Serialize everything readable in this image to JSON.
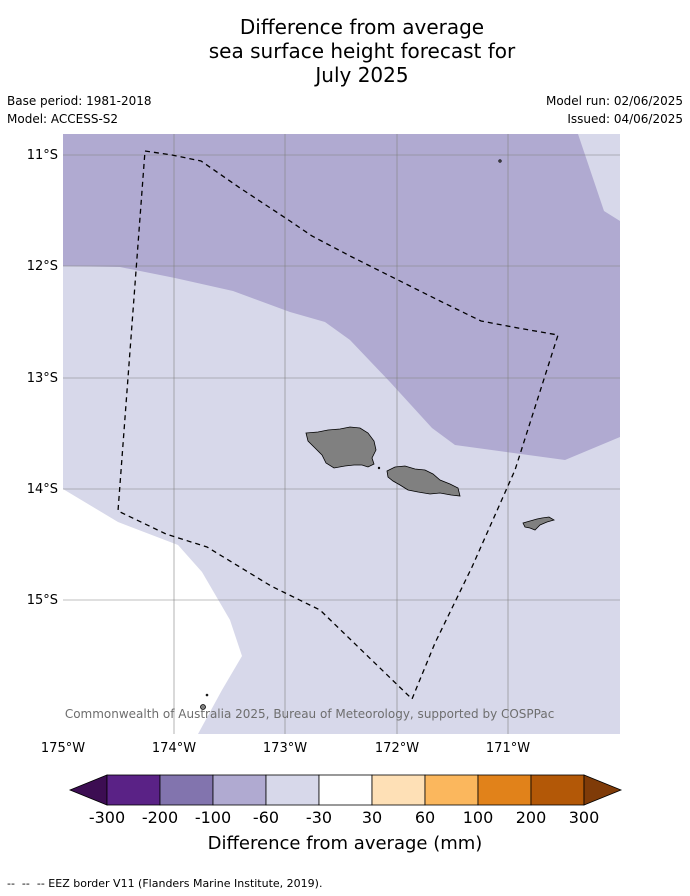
{
  "title": {
    "line1": "Difference from average",
    "line2": "sea surface height forecast for",
    "line3": "July 2025"
  },
  "info": {
    "base_period": "Base period: 1981-2018",
    "model": "Model: ACCESS-S2",
    "model_run": "Model run: 02/06/2025",
    "issued": "Issued: 04/06/2025"
  },
  "map": {
    "lat_labels": [
      "11°S",
      "12°S",
      "13°S",
      "14°S",
      "15°S"
    ],
    "lon_labels": [
      "175°W",
      "174°W",
      "173°W",
      "172°W",
      "171°W"
    ],
    "attribution": "© Commonwealth of Australia 2025, Bureau of Meteorology, supported by COSPPac",
    "colors": {
      "anomaly_neg_60_100": "#b0aad1",
      "anomaly_neg_30_60": "#d7d8ea",
      "neutral": "#ffffff",
      "land": "#808080",
      "eez_border": "#000000"
    }
  },
  "colorbar": {
    "title": "Difference from average (mm)",
    "tick_labels": [
      "-300",
      "-200",
      "-100",
      "-60",
      "-30",
      "30",
      "60",
      "100",
      "200",
      "300"
    ],
    "colors": [
      "#3c0d52",
      "#5a2286",
      "#8274ae",
      "#b0aad1",
      "#d7d8ea",
      "#ffffff",
      "#fee0b6",
      "#fbb75d",
      "#e1821a",
      "#b35807",
      "#7f3b08"
    ]
  },
  "legend": {
    "eez_text": "--  --  -- EEZ border V11 (Flanders Marine Institute, 2019)."
  }
}
